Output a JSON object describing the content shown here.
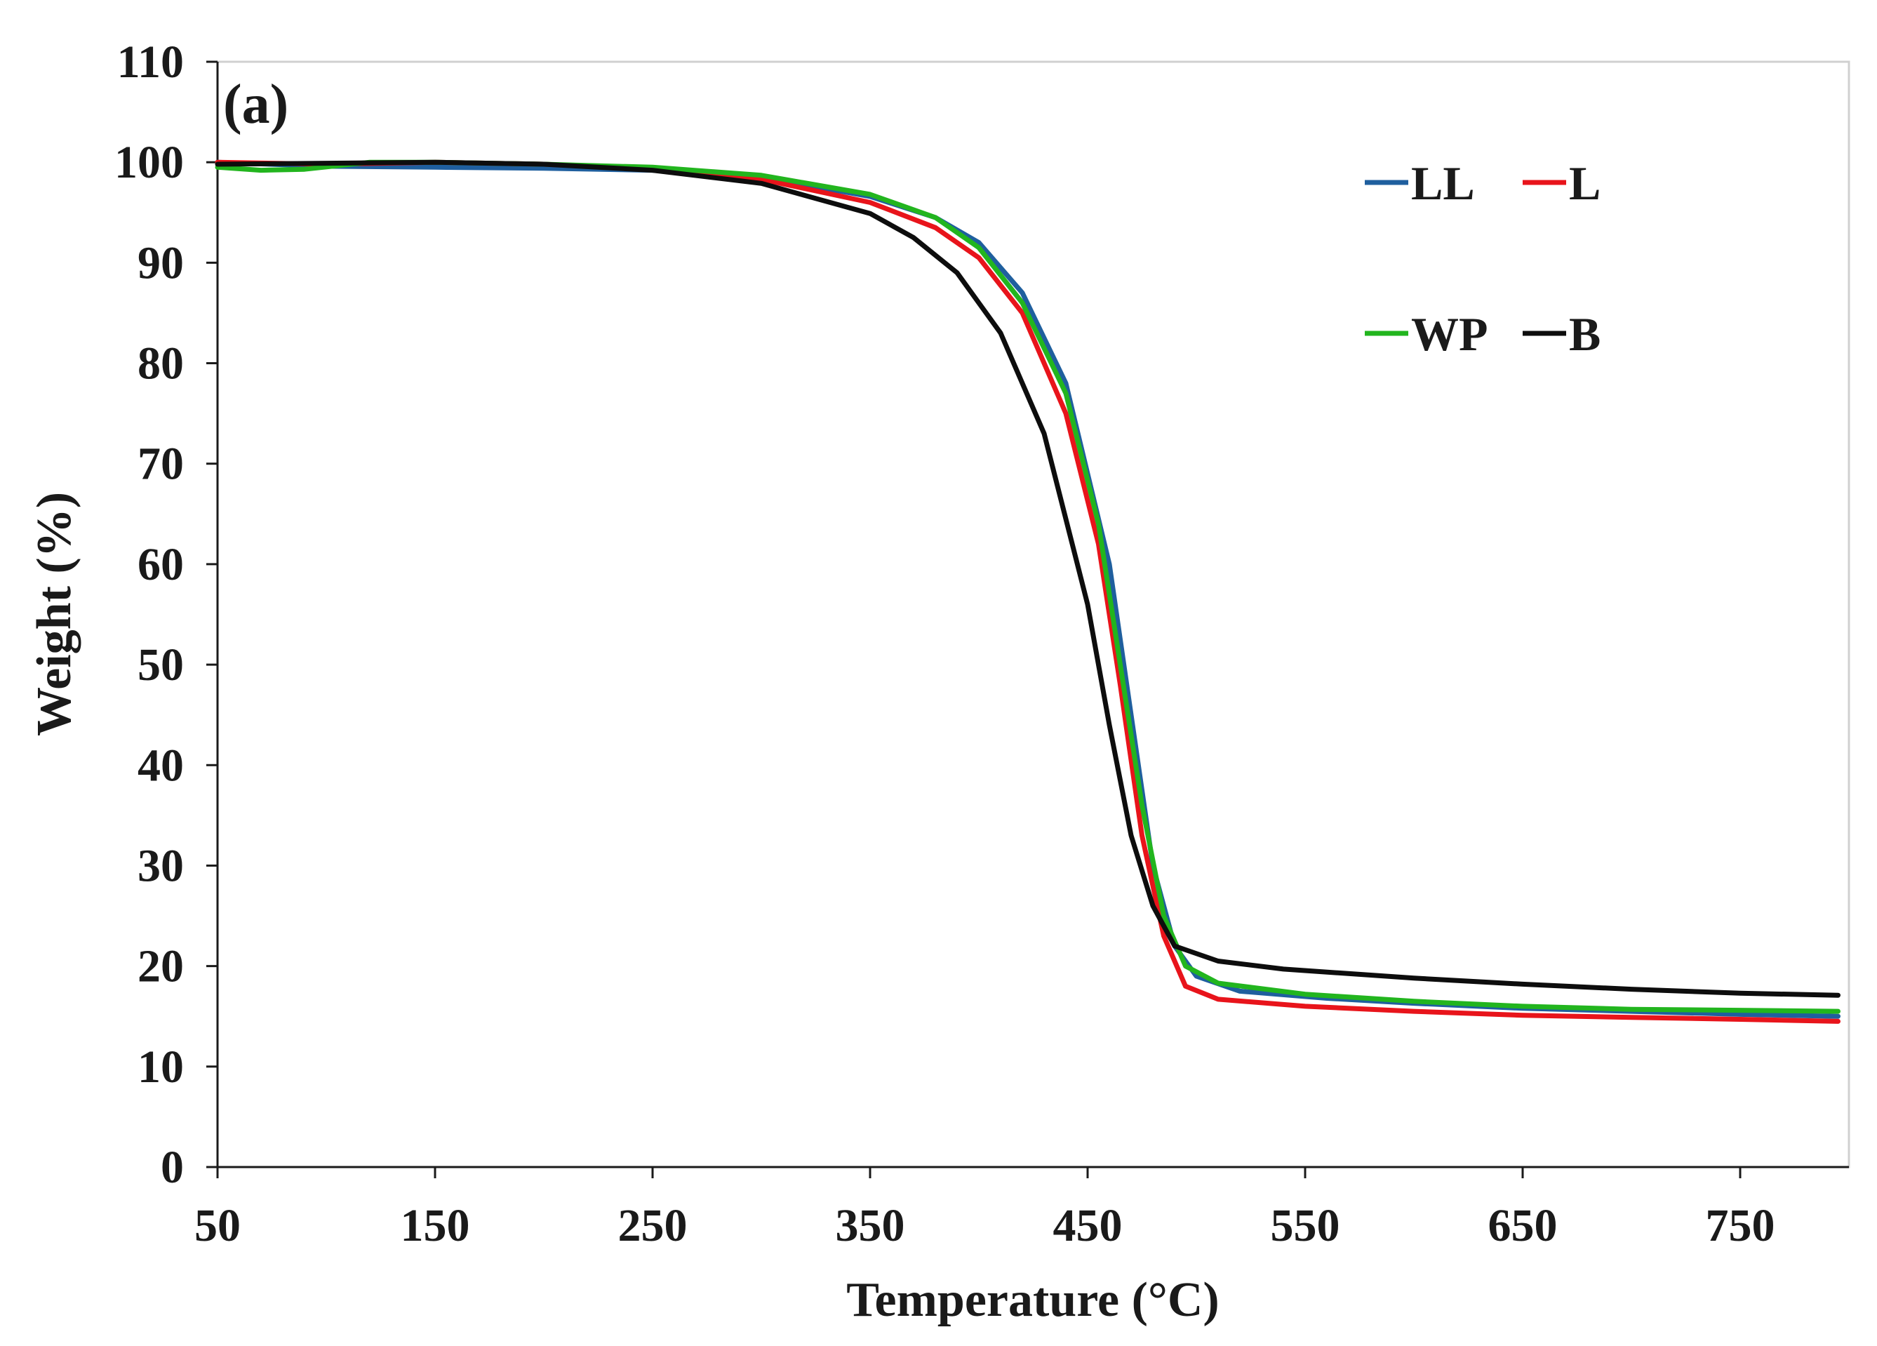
{
  "chart_data": {
    "type": "line",
    "panel_label": "(a)",
    "xlabel": "Temperature (°C)",
    "ylabel": "Weight (%)",
    "xlim": [
      50,
      800
    ],
    "ylim": [
      0,
      110
    ],
    "x_ticks": [
      50,
      150,
      250,
      350,
      450,
      550,
      650,
      750
    ],
    "y_ticks": [
      0,
      10,
      20,
      30,
      40,
      50,
      60,
      70,
      80,
      90,
      100,
      110
    ],
    "legend_position": "top-right",
    "series": [
      {
        "name": "LL",
        "color": "#1f5f9e",
        "points": [
          [
            50,
            100
          ],
          [
            100,
            99.6
          ],
          [
            150,
            99.5
          ],
          [
            200,
            99.4
          ],
          [
            250,
            99.2
          ],
          [
            300,
            98.5
          ],
          [
            350,
            96.6
          ],
          [
            380,
            94.5
          ],
          [
            400,
            92
          ],
          [
            420,
            87
          ],
          [
            440,
            78
          ],
          [
            460,
            60
          ],
          [
            470,
            45
          ],
          [
            480,
            30
          ],
          [
            490,
            22
          ],
          [
            500,
            19
          ],
          [
            520,
            17.5
          ],
          [
            560,
            16.8
          ],
          [
            600,
            16.3
          ],
          [
            650,
            15.8
          ],
          [
            700,
            15.5
          ],
          [
            750,
            15.2
          ],
          [
            795,
            15
          ]
        ]
      },
      {
        "name": "L",
        "color": "#e8141b",
        "points": [
          [
            50,
            100
          ],
          [
            100,
            99.8
          ],
          [
            150,
            100
          ],
          [
            200,
            99.8
          ],
          [
            250,
            99.3
          ],
          [
            300,
            98.3
          ],
          [
            350,
            96
          ],
          [
            380,
            93.5
          ],
          [
            400,
            90.5
          ],
          [
            420,
            85
          ],
          [
            440,
            75
          ],
          [
            455,
            62
          ],
          [
            465,
            48
          ],
          [
            475,
            33
          ],
          [
            485,
            23
          ],
          [
            495,
            18
          ],
          [
            510,
            16.7
          ],
          [
            550,
            16
          ],
          [
            600,
            15.5
          ],
          [
            650,
            15.1
          ],
          [
            700,
            14.9
          ],
          [
            750,
            14.7
          ],
          [
            795,
            14.5
          ]
        ]
      },
      {
        "name": "WP",
        "color": "#22b51e",
        "points": [
          [
            50,
            99.5
          ],
          [
            70,
            99.2
          ],
          [
            90,
            99.3
          ],
          [
            120,
            100
          ],
          [
            150,
            100
          ],
          [
            200,
            99.8
          ],
          [
            250,
            99.5
          ],
          [
            300,
            98.7
          ],
          [
            350,
            96.8
          ],
          [
            380,
            94.5
          ],
          [
            400,
            91.5
          ],
          [
            420,
            86
          ],
          [
            440,
            77
          ],
          [
            455,
            64
          ],
          [
            465,
            50
          ],
          [
            475,
            36
          ],
          [
            485,
            25
          ],
          [
            495,
            20
          ],
          [
            510,
            18.3
          ],
          [
            550,
            17.2
          ],
          [
            600,
            16.5
          ],
          [
            650,
            16
          ],
          [
            700,
            15.7
          ],
          [
            750,
            15.6
          ],
          [
            795,
            15.5
          ]
        ]
      },
      {
        "name": "B",
        "color": "#0d0d0d",
        "points": [
          [
            50,
            99.8
          ],
          [
            100,
            99.9
          ],
          [
            150,
            100
          ],
          [
            200,
            99.8
          ],
          [
            250,
            99.2
          ],
          [
            300,
            97.9
          ],
          [
            350,
            94.9
          ],
          [
            370,
            92.5
          ],
          [
            390,
            89
          ],
          [
            410,
            83
          ],
          [
            430,
            73
          ],
          [
            450,
            56
          ],
          [
            460,
            44
          ],
          [
            470,
            33
          ],
          [
            480,
            26
          ],
          [
            490,
            22
          ],
          [
            510,
            20.5
          ],
          [
            540,
            19.7
          ],
          [
            600,
            18.8
          ],
          [
            650,
            18.2
          ],
          [
            700,
            17.7
          ],
          [
            750,
            17.3
          ],
          [
            795,
            17.1
          ]
        ]
      }
    ]
  }
}
